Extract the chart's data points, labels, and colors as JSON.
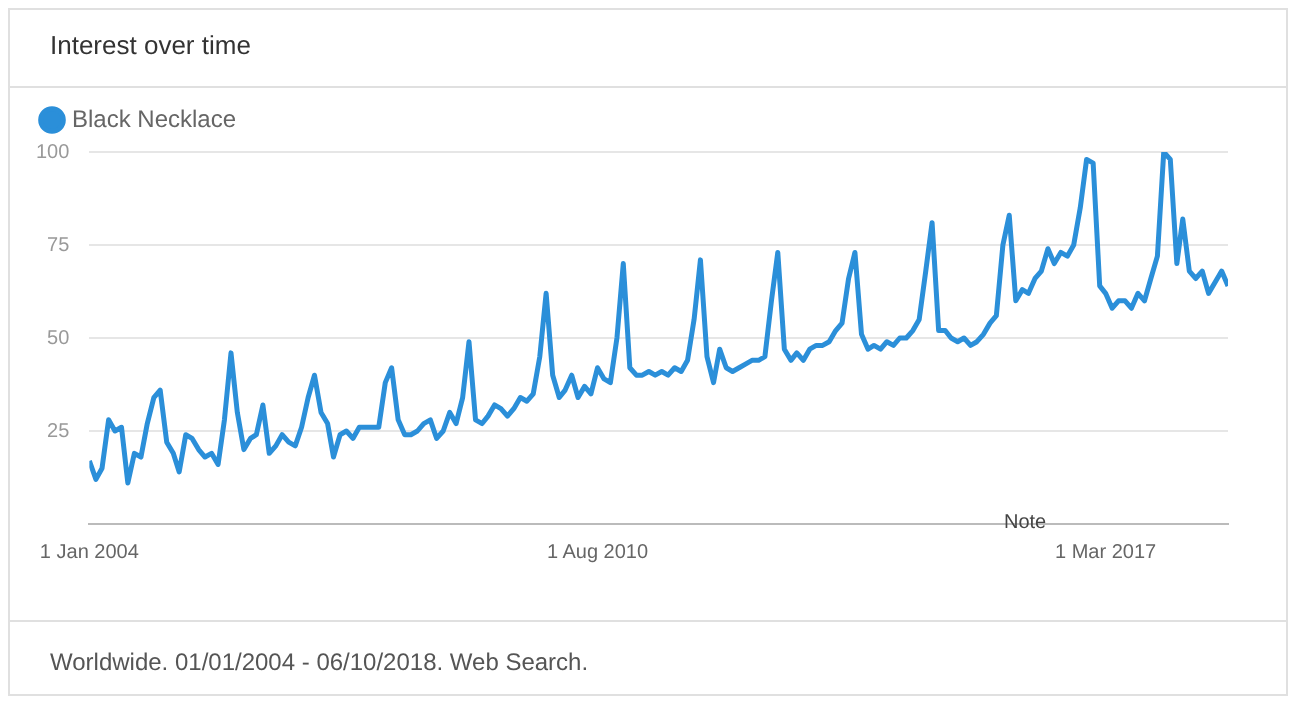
{
  "chart_data": {
    "type": "line",
    "title": "Interest over time",
    "x": [
      "2004-01",
      "2004-02",
      "2004-03",
      "2004-04",
      "2004-05",
      "2004-06",
      "2004-07",
      "2004-08",
      "2004-09",
      "2004-10",
      "2004-11",
      "2004-12",
      "2005-01",
      "2005-02",
      "2005-03",
      "2005-04",
      "2005-05",
      "2005-06",
      "2005-07",
      "2005-08",
      "2005-09",
      "2005-10",
      "2005-11",
      "2005-12",
      "2006-01",
      "2006-02",
      "2006-03",
      "2006-04",
      "2006-05",
      "2006-06",
      "2006-07",
      "2006-08",
      "2006-09",
      "2006-10",
      "2006-11",
      "2006-12",
      "2007-01",
      "2007-02",
      "2007-03",
      "2007-04",
      "2007-05",
      "2007-06",
      "2007-07",
      "2007-08",
      "2007-09",
      "2007-10",
      "2007-11",
      "2007-12",
      "2008-01",
      "2008-02",
      "2008-03",
      "2008-04",
      "2008-05",
      "2008-06",
      "2008-07",
      "2008-08",
      "2008-09",
      "2008-10",
      "2008-11",
      "2008-12",
      "2009-01",
      "2009-02",
      "2009-03",
      "2009-04",
      "2009-05",
      "2009-06",
      "2009-07",
      "2009-08",
      "2009-09",
      "2009-10",
      "2009-11",
      "2009-12",
      "2010-01",
      "2010-02",
      "2010-03",
      "2010-04",
      "2010-05",
      "2010-06",
      "2010-07",
      "2010-08",
      "2010-09",
      "2010-10",
      "2010-11",
      "2010-12",
      "2011-01",
      "2011-02",
      "2011-03",
      "2011-04",
      "2011-05",
      "2011-06",
      "2011-07",
      "2011-08",
      "2011-09",
      "2011-10",
      "2011-11",
      "2011-12",
      "2012-01",
      "2012-02",
      "2012-03",
      "2012-04",
      "2012-05",
      "2012-06",
      "2012-07",
      "2012-08",
      "2012-09",
      "2012-10",
      "2012-11",
      "2012-12",
      "2013-01",
      "2013-02",
      "2013-03",
      "2013-04",
      "2013-05",
      "2013-06",
      "2013-07",
      "2013-08",
      "2013-09",
      "2013-10",
      "2013-11",
      "2013-12",
      "2014-01",
      "2014-02",
      "2014-03",
      "2014-04",
      "2014-05",
      "2014-06",
      "2014-07",
      "2014-08",
      "2014-09",
      "2014-10",
      "2014-11",
      "2014-12",
      "2015-01",
      "2015-02",
      "2015-03",
      "2015-04",
      "2015-05",
      "2015-06",
      "2015-07",
      "2015-08",
      "2015-09",
      "2015-10",
      "2015-11",
      "2015-12",
      "2016-01",
      "2016-02",
      "2016-03",
      "2016-04",
      "2016-05",
      "2016-06",
      "2016-07",
      "2016-08",
      "2016-09",
      "2016-10",
      "2016-11",
      "2016-12",
      "2017-01",
      "2017-02",
      "2017-03",
      "2017-04",
      "2017-05",
      "2017-06",
      "2017-07",
      "2017-08",
      "2017-09",
      "2017-10",
      "2017-11",
      "2017-12",
      "2018-01",
      "2018-02",
      "2018-03",
      "2018-04",
      "2018-05",
      "2018-06",
      "2018-07",
      "2018-08",
      "2018-09",
      "2018-10"
    ],
    "series": [
      {
        "name": "Black Necklace",
        "color": "#2b8fd9",
        "values": [
          17,
          12,
          15,
          28,
          25,
          26,
          11,
          19,
          18,
          27,
          34,
          36,
          22,
          19,
          14,
          24,
          23,
          20,
          18,
          19,
          16,
          28,
          46,
          30,
          20,
          23,
          24,
          32,
          19,
          21,
          24,
          22,
          21,
          26,
          34,
          40,
          30,
          27,
          18,
          24,
          25,
          23,
          26,
          26,
          26,
          26,
          38,
          42,
          28,
          24,
          24,
          25,
          27,
          28,
          23,
          25,
          30,
          27,
          34,
          49,
          28,
          27,
          29,
          32,
          31,
          29,
          31,
          34,
          33,
          35,
          45,
          62,
          40,
          34,
          36,
          40,
          34,
          37,
          35,
          42,
          39,
          38,
          50,
          70,
          42,
          40,
          40,
          41,
          40,
          41,
          40,
          42,
          41,
          44,
          55,
          71,
          45,
          38,
          47,
          42,
          41,
          42,
          43,
          44,
          44,
          45,
          60,
          73,
          47,
          44,
          46,
          44,
          47,
          48,
          48,
          49,
          52,
          54,
          66,
          73,
          51,
          47,
          48,
          47,
          49,
          48,
          50,
          50,
          52,
          55,
          68,
          81,
          52,
          52,
          50,
          49,
          50,
          48,
          49,
          51,
          54,
          56,
          75,
          83,
          60,
          63,
          62,
          66,
          68,
          74,
          70,
          73,
          72,
          75,
          85,
          98,
          97,
          64,
          62,
          58,
          60,
          60,
          58,
          62,
          60,
          66,
          72,
          100,
          98,
          70,
          82,
          68,
          66,
          68,
          62,
          65,
          68,
          64
        ]
      }
    ],
    "xlim": [
      "2004-01",
      "2018-10"
    ],
    "xticks": [
      {
        "value": "2004-01-01",
        "label": "1 Jan 2004"
      },
      {
        "value": "2010-08-01",
        "label": "1 Aug 2010"
      },
      {
        "value": "2017-03-01",
        "label": "1 Mar 2017"
      }
    ],
    "ylim": [
      0,
      100
    ],
    "yticks": [
      {
        "value": 0,
        "label": null
      },
      25,
      50,
      75,
      100
    ],
    "grid": "y",
    "legend": "top left",
    "marker": "none",
    "line_style": "solid",
    "annotations": [
      "Note",
      "Worldwide. 01/01/2004 - 06/10/2018. Web Search."
    ]
  }
}
